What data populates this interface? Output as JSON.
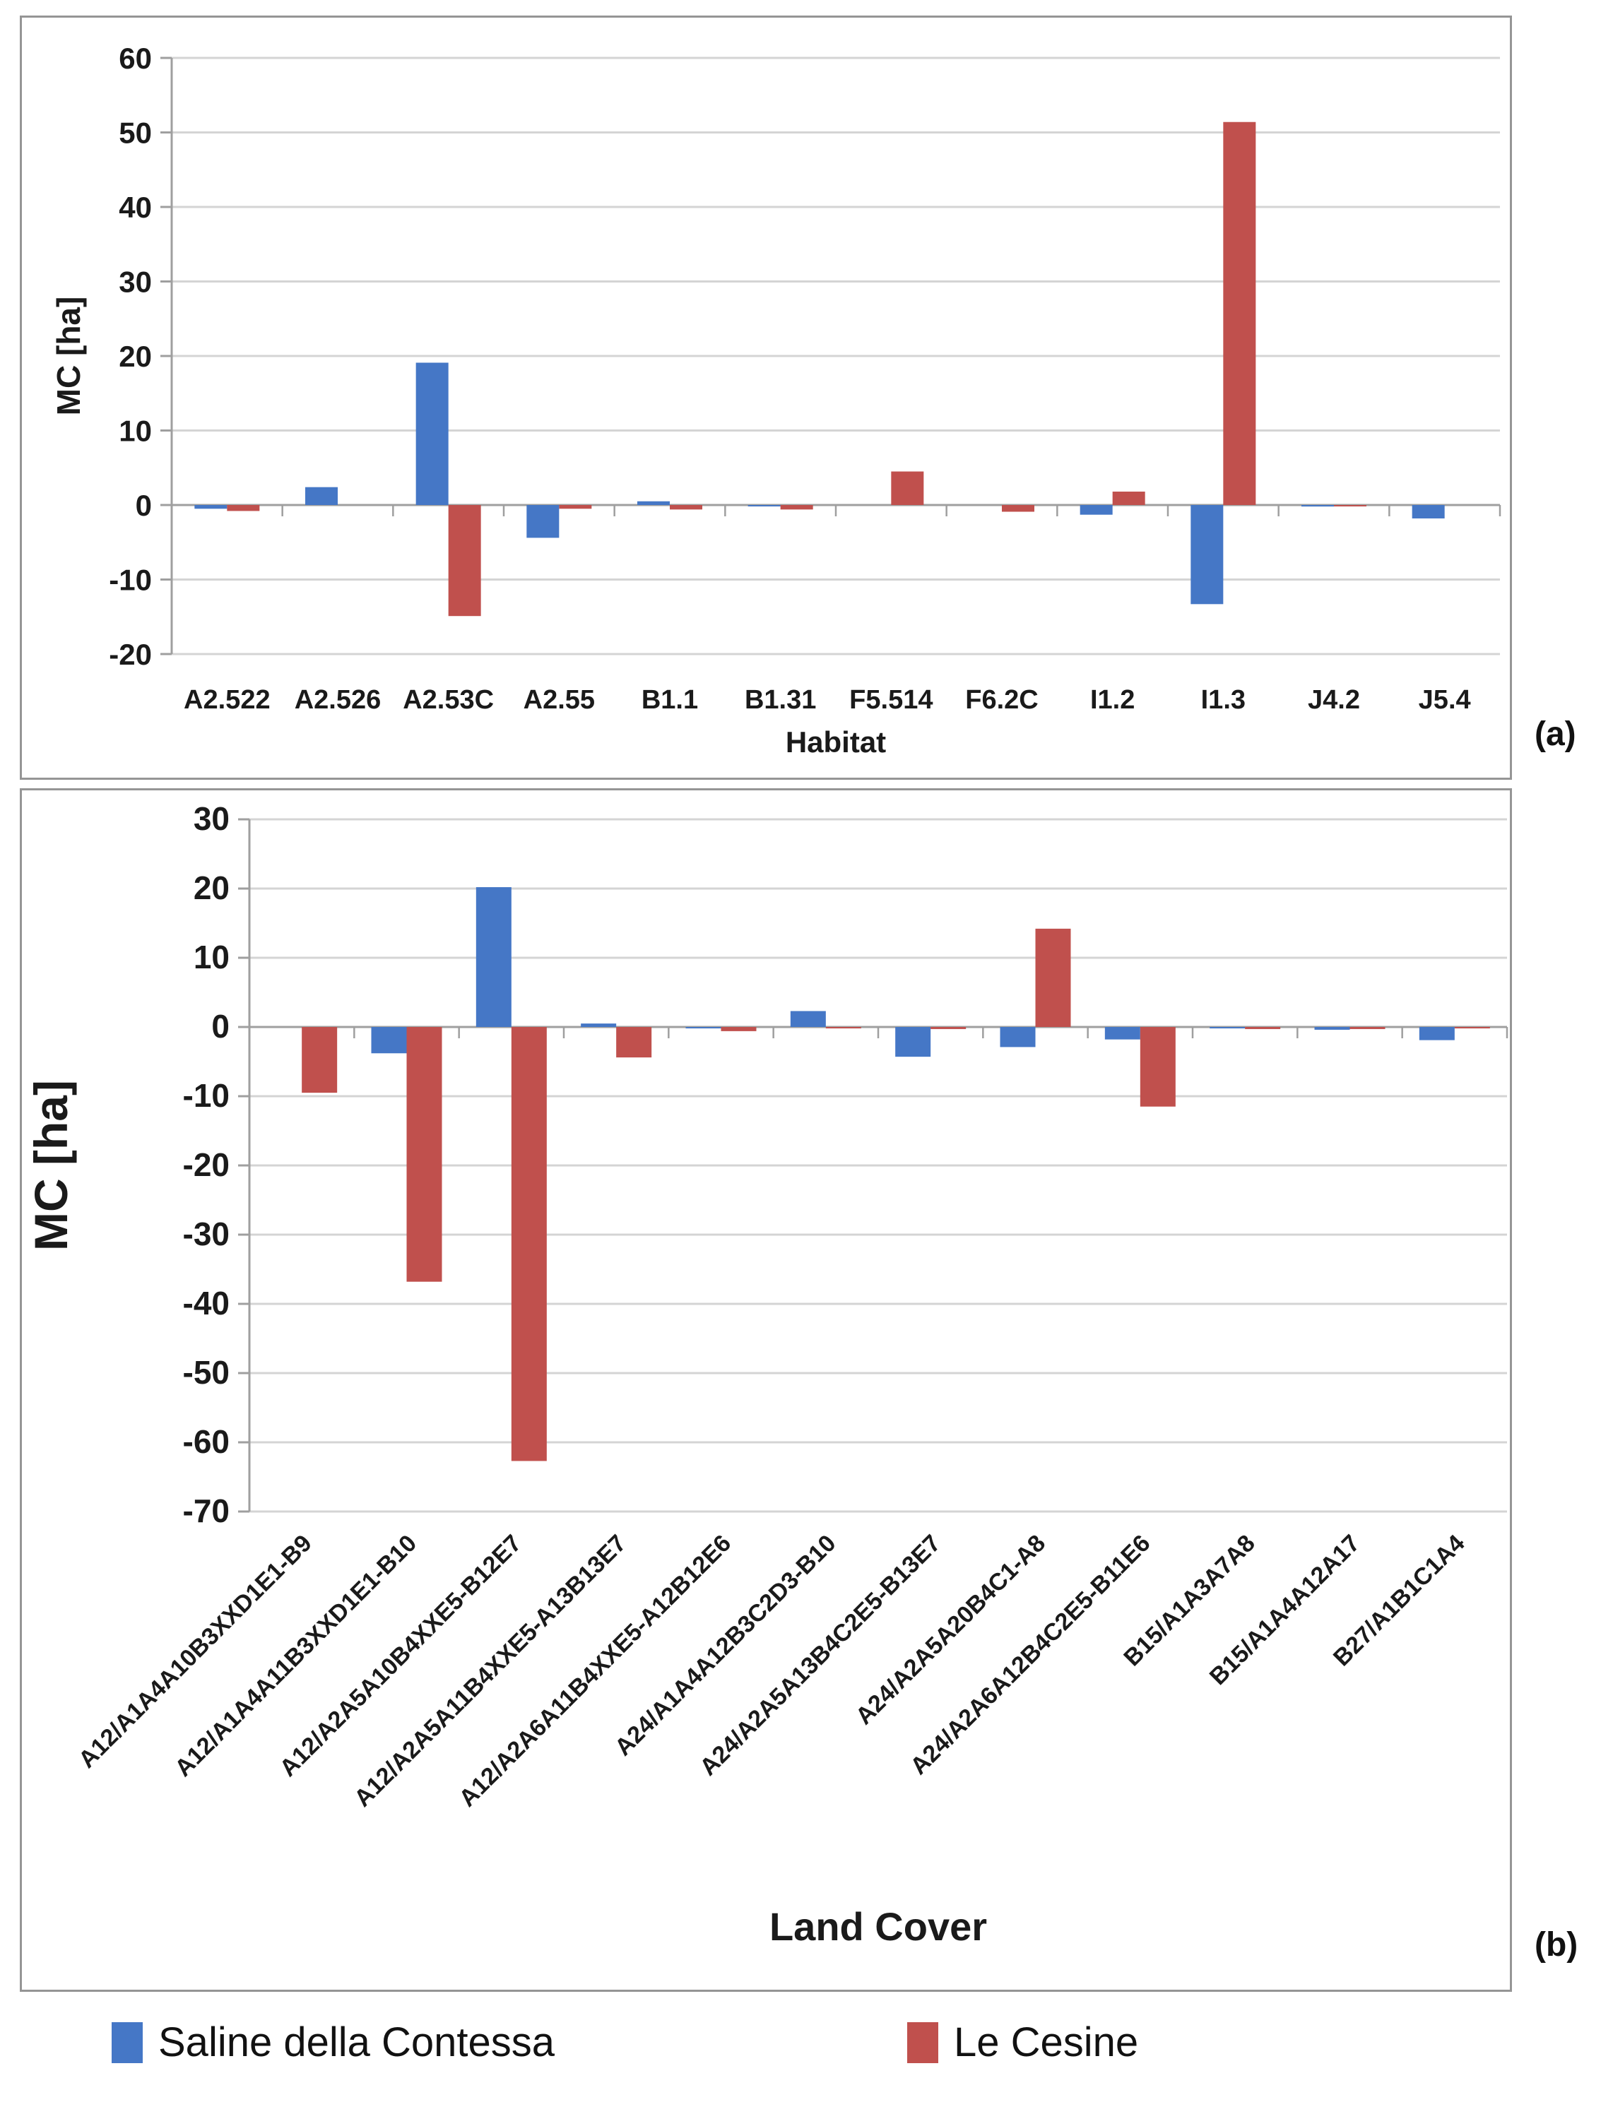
{
  "figure": {
    "panels": [
      {
        "tag": "(a)"
      },
      {
        "tag": "(b)"
      }
    ],
    "legend": [
      {
        "label": "Saline della Contessa",
        "color": "#4577C6"
      },
      {
        "label": "Le Cesine",
        "color": "#C0504D"
      }
    ],
    "colors": {
      "blue_series": "#4577C6",
      "red_series": "#C0504D",
      "gridline": "#d4d4d4",
      "axis_line": "#9f9f9f",
      "text": "#1a1a1a"
    }
  },
  "chart_data": [
    {
      "type": "bar",
      "panel": "a",
      "title": "",
      "xlabel": "Habitat",
      "ylabel": "MC [ha]",
      "ylim": [
        -20,
        60
      ],
      "ytick_step": 10,
      "yticks": [
        60,
        50,
        40,
        30,
        20,
        10,
        0,
        -10,
        -20
      ],
      "grid": true,
      "legend_position": "below-figure",
      "categories": [
        "A2.522",
        "A2.526",
        "A2.53C",
        "A2.55",
        "B1.1",
        "B1.31",
        "F5.514",
        "F6.2C",
        "I1.2",
        "I1.3",
        "J4.2",
        "J5.4"
      ],
      "series": [
        {
          "name": "Saline della Contessa",
          "color": "#4577C6",
          "values": [
            -0.5,
            2.4,
            19.1,
            -4.4,
            0.5,
            -0.1,
            0,
            0,
            -1.3,
            -13.3,
            -0.2,
            -1.8
          ]
        },
        {
          "name": "Le Cesine",
          "color": "#C0504D",
          "values": [
            -0.8,
            0,
            -14.9,
            -0.5,
            -0.6,
            -0.6,
            4.5,
            -0.9,
            1.8,
            51.4,
            -0.1,
            0
          ]
        }
      ]
    },
    {
      "type": "bar",
      "panel": "b",
      "title": "",
      "xlabel": "Land Cover",
      "ylabel": "MC [ha]",
      "ylim": [
        -70,
        30
      ],
      "ytick_step": 10,
      "yticks": [
        30,
        20,
        10,
        0,
        -10,
        -20,
        -30,
        -40,
        -50,
        -60,
        -70
      ],
      "grid": true,
      "legend_position": "below-figure",
      "categories": [
        "A12/A1A4A10B3XXD1E1-B9",
        "A12/A1A4A11B3XXD1E1-B10",
        "A12/A2A5A10B4XXE5-B12E7",
        "A12/A2A5A11B4XXE5-A13B13E7",
        "A12/A2A6A11B4XXE5-A12B12E6",
        "A24/A1A4A12B3C2D3-B10",
        "A24/A2A5A13B4C2E5-B13E7",
        "A24/A2A5A20B4C1-A8",
        "A24/A2A6A12B4C2E5-B11E6",
        "B15/A1A3A7A8",
        "B15/A1A4A12A17",
        "B27/A1B1C1A4"
      ],
      "series": [
        {
          "name": "Saline della Contessa",
          "color": "#4577C6",
          "values": [
            0,
            -3.8,
            20.2,
            0.5,
            -0.1,
            2.3,
            -4.3,
            -2.9,
            -1.8,
            -0.2,
            -0.4,
            -1.9
          ]
        },
        {
          "name": "Le Cesine",
          "color": "#C0504D",
          "values": [
            -9.5,
            -36.8,
            -62.7,
            -4.4,
            -0.6,
            -0.2,
            -0.3,
            14.2,
            -11.5,
            -0.3,
            -0.3,
            -0.1
          ]
        }
      ]
    }
  ]
}
